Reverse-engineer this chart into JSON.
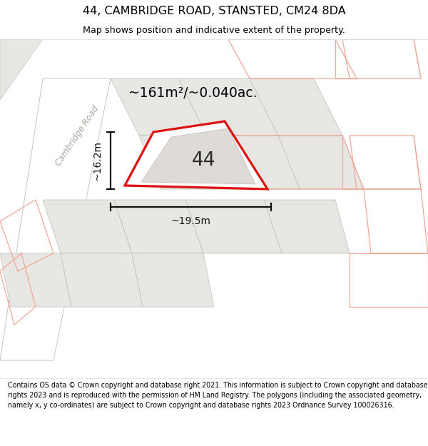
{
  "title_line1": "44, CAMBRIDGE ROAD, STANSTED, CM24 8DA",
  "title_line2": "Map shows position and indicative extent of the property.",
  "footer_text": "Contains OS data © Crown copyright and database right 2021. This information is subject to Crown copyright and database rights 2023 and is reproduced with the permission of HM Land Registry. The polygons (including the associated geometry, namely x, y co-ordinates) are subject to Crown copyright and database rights 2023 Ordnance Survey 100026316.",
  "area_label": "~161m²/~0.040ac.",
  "property_number": "44",
  "dim_width": "~19.5m",
  "dim_height": "~16.2m",
  "road_label": "Cambridge Road",
  "bg_white": "#ffffff",
  "parcel_fill": "#e8e6e3",
  "parcel_outline": "#c8c4be",
  "plot44_fill": "#ffffff",
  "plot44_red": "#dd1111",
  "building_fill": "#dedad5",
  "building_outline": "#c0bbb4",
  "pink": "#f0a898",
  "dim_black": "#111111",
  "road_line_gray": "#c0bcb6",
  "text_gray": "#aaa8a0"
}
